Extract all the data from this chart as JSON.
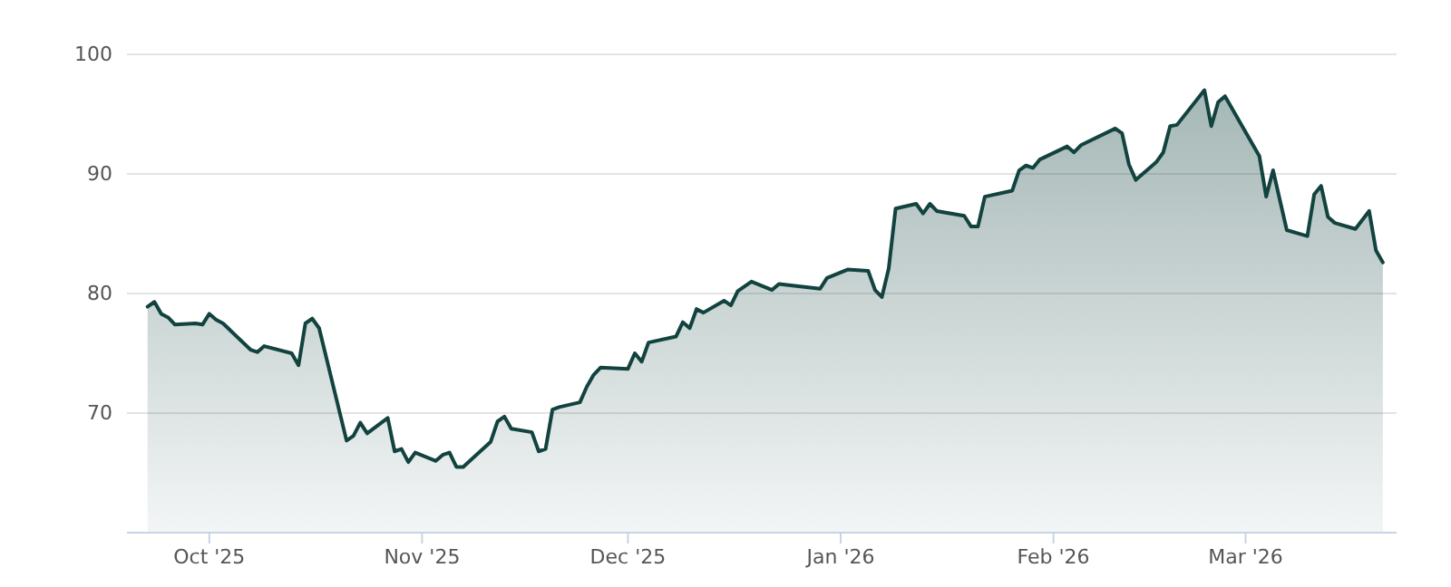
{
  "chart_data": {
    "type": "area",
    "x": [
      "2025-09-22",
      "2025-09-23",
      "2025-09-24",
      "2025-09-25",
      "2025-09-26",
      "2025-09-29",
      "2025-09-30",
      "2025-10-01",
      "2025-10-02",
      "2025-10-03",
      "2025-10-07",
      "2025-10-08",
      "2025-10-09",
      "2025-10-13",
      "2025-10-14",
      "2025-10-15",
      "2025-10-16",
      "2025-10-17",
      "2025-10-21",
      "2025-10-22",
      "2025-10-23",
      "2025-10-24",
      "2025-10-27",
      "2025-10-28",
      "2025-10-29",
      "2025-10-30",
      "2025-10-31",
      "2025-11-03",
      "2025-11-04",
      "2025-11-05",
      "2025-11-06",
      "2025-11-07",
      "2025-11-11",
      "2025-11-12",
      "2025-11-13",
      "2025-11-14",
      "2025-11-17",
      "2025-11-18",
      "2025-11-19",
      "2025-11-20",
      "2025-11-21",
      "2025-11-24",
      "2025-11-25",
      "2025-11-26",
      "2025-11-27",
      "2025-12-01",
      "2025-12-02",
      "2025-12-03",
      "2025-12-04",
      "2025-12-08",
      "2025-12-09",
      "2025-12-10",
      "2025-12-11",
      "2025-12-12",
      "2025-12-15",
      "2025-12-16",
      "2025-12-17",
      "2025-12-19",
      "2025-12-22",
      "2025-12-23",
      "2025-12-29",
      "2025-12-30",
      "2026-01-02",
      "2026-01-05",
      "2026-01-06",
      "2026-01-07",
      "2026-01-08",
      "2026-01-09",
      "2026-01-12",
      "2026-01-13",
      "2026-01-14",
      "2026-01-15",
      "2026-01-19",
      "2026-01-20",
      "2026-01-21",
      "2026-01-22",
      "2026-01-26",
      "2026-01-27",
      "2026-01-28",
      "2026-01-29",
      "2026-01-30",
      "2026-02-03",
      "2026-02-04",
      "2026-02-05",
      "2026-02-10",
      "2026-02-11",
      "2026-02-12",
      "2026-02-13",
      "2026-02-16",
      "2026-02-17",
      "2026-02-18",
      "2026-02-19",
      "2026-02-23",
      "2026-02-24",
      "2026-02-25",
      "2026-02-26",
      "2026-03-03",
      "2026-03-04",
      "2026-03-05",
      "2026-03-07",
      "2026-03-10",
      "2026-03-11",
      "2026-03-12",
      "2026-03-13",
      "2026-03-14",
      "2026-03-17",
      "2026-03-19",
      "2026-03-20",
      "2026-03-21"
    ],
    "series": [
      {
        "color": "#12433f",
        "values": [
          78.9,
          79.3,
          78.3,
          78.0,
          77.4,
          77.5,
          77.4,
          78.3,
          77.8,
          77.5,
          75.3,
          75.1,
          75.6,
          75.0,
          74.0,
          77.5,
          77.9,
          77.1,
          67.7,
          68.1,
          69.2,
          68.3,
          69.6,
          66.8,
          67.0,
          65.9,
          66.7,
          66.0,
          66.5,
          66.7,
          65.5,
          65.5,
          67.6,
          69.3,
          69.7,
          68.7,
          68.4,
          66.8,
          67.0,
          70.3,
          70.5,
          70.9,
          72.2,
          73.2,
          73.8,
          73.7,
          75.0,
          74.3,
          75.9,
          76.4,
          77.6,
          77.1,
          78.7,
          78.4,
          79.4,
          79.0,
          80.2,
          81.0,
          80.3,
          80.8,
          80.4,
          81.3,
          82.0,
          81.9,
          80.3,
          79.7,
          82.1,
          87.1,
          87.5,
          86.7,
          87.5,
          86.9,
          86.5,
          85.6,
          85.6,
          88.1,
          88.6,
          90.3,
          90.7,
          90.5,
          91.2,
          92.3,
          91.8,
          92.4,
          93.8,
          93.4,
          90.8,
          89.5,
          91.0,
          91.8,
          94.0,
          94.1,
          97.0,
          94.0,
          96.0,
          96.5,
          91.5,
          88.1,
          90.3,
          85.3,
          84.8,
          88.3,
          89.0,
          86.4,
          85.9,
          85.4,
          86.9,
          83.6,
          82.6
        ]
      }
    ],
    "xlim": [
      "2025-09-19",
      "2026-03-23"
    ],
    "xticks": [
      {
        "value": "2025-10-01",
        "label": "Oct '25"
      },
      {
        "value": "2025-11-01",
        "label": "Nov '25"
      },
      {
        "value": "2025-12-01",
        "label": "Dec '25"
      },
      {
        "value": "2026-01-01",
        "label": "Jan '26"
      },
      {
        "value": "2026-02-01",
        "label": "Feb '26"
      },
      {
        "value": "2026-03-01",
        "label": "Mar '26"
      }
    ],
    "ylim": [
      60,
      100
    ],
    "yticks": [
      70,
      80,
      90,
      100
    ],
    "grid": "y"
  }
}
